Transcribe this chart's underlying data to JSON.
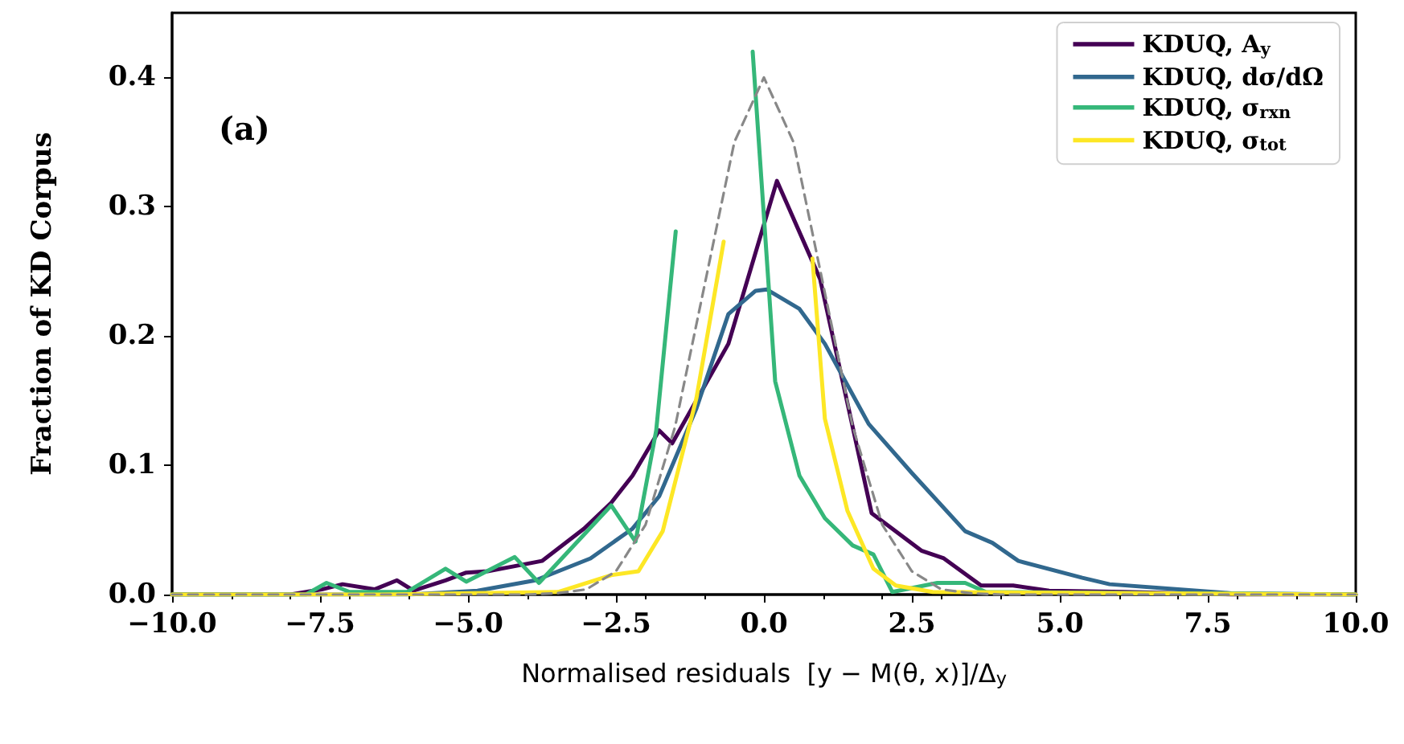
{
  "chart_data": {
    "type": "line",
    "xlabel": "Normalised residuals  [y − M(θ, x)]/Δ$_{y}$",
    "ylabel": "Fraction of KD Corpus",
    "annotations": [
      "(a)"
    ],
    "xlim": [
      -10,
      10
    ],
    "xticks": [
      {
        "value": -10,
        "label": "−10.0"
      },
      {
        "value": -7.5,
        "label": "−7.5"
      },
      {
        "value": -5,
        "label": "−5.0"
      },
      {
        "value": -2.5,
        "label": "−2.5"
      },
      {
        "value": 0,
        "label": "0.0"
      },
      {
        "value": 2.5,
        "label": "2.5"
      },
      {
        "value": 5,
        "label": "5.0"
      },
      {
        "value": 7.5,
        "label": "7.5"
      },
      {
        "value": 10,
        "label": "10.0"
      }
    ],
    "ylim": [
      0,
      0.45
    ],
    "yticks": [
      {
        "value": 0,
        "label": "0.0"
      },
      {
        "value": 0.1,
        "label": "0.1"
      },
      {
        "value": 0.2,
        "label": "0.2"
      },
      {
        "value": 0.3,
        "label": "0.3"
      },
      {
        "value": 0.4,
        "label": "0.4"
      }
    ],
    "grid": false,
    "legend": "top right",
    "marker": "none",
    "line_style": "solid",
    "series": [
      {
        "name": "KDUQ, A$_{y}$",
        "color": "#440154",
        "x": [
          -10,
          -8,
          -7.47,
          -7.12,
          -6.58,
          -6.2,
          -5.92,
          -5.38,
          -5.03,
          -4.67,
          -4.21,
          -3.75,
          -3.04,
          -2.58,
          -2.22,
          -1.77,
          -1.55,
          -0.6,
          0.22,
          0.95,
          1.82,
          2.66,
          3.04,
          3.67,
          4.21,
          4.82,
          6.1,
          7.9,
          10
        ],
        "values": [
          0,
          0,
          0.004,
          0.008,
          0.004,
          0.011,
          0.003,
          0.011,
          0.017,
          0.018,
          0.022,
          0.026,
          0.051,
          0.071,
          0.092,
          0.127,
          0.117,
          0.194,
          0.32,
          0.244,
          0.063,
          0.034,
          0.028,
          0.007,
          0.007,
          0.003,
          0.002,
          0,
          0
        ]
      },
      {
        "name": "KDUQ, dσ/dΩ",
        "color": "#31688e",
        "x": [
          -10,
          -6,
          -4.84,
          -3.86,
          -2.93,
          -2.22,
          -1.77,
          -1.14,
          -0.6,
          -0.14,
          0.05,
          0.6,
          1.03,
          1.77,
          2.5,
          3.4,
          3.86,
          4.3,
          5.38,
          5.84,
          7.0,
          7.9,
          10
        ],
        "values": [
          0,
          0,
          0.003,
          0.011,
          0.028,
          0.051,
          0.076,
          0.144,
          0.217,
          0.235,
          0.236,
          0.221,
          0.194,
          0.132,
          0.094,
          0.049,
          0.04,
          0.026,
          0.013,
          0.008,
          0.004,
          0.001,
          0
        ]
      },
      {
        "name": "KDUQ, σ$_{rxn}$",
        "color": "#35b779",
        "x": [
          -10,
          -7.74,
          -7.39,
          -7.0,
          -6.03,
          -5.38,
          -5.03,
          -4.21,
          -3.8,
          -2.58,
          -2.17,
          -1.82,
          -1.49,
          -1.0,
          -0.8,
          -0.6,
          -0.19,
          0.19,
          0.6,
          1.03,
          1.5,
          1.85,
          2.17,
          2.93,
          3.4,
          3.75,
          10
        ],
        "values": [
          0,
          0,
          0.009,
          0.002,
          0.002,
          0.02,
          0.01,
          0.029,
          0.009,
          0.069,
          0.041,
          0.127,
          0.281,
          null,
          null,
          null,
          0.42,
          0.165,
          0.092,
          0.059,
          0.038,
          0.031,
          0.002,
          0.009,
          0.009,
          0.002,
          0
        ]
      },
      {
        "name": "KDUQ, σ$_{tot}$",
        "color": "#fde725",
        "x": [
          -10,
          -6.5,
          -3.48,
          -2.58,
          -2.12,
          -1.71,
          -1.14,
          -0.68,
          -0.35,
          0.1,
          0.49,
          0.82,
          1.03,
          1.41,
          1.85,
          2.23,
          2.85,
          10
        ],
        "values": [
          0,
          0,
          0.002,
          0.015,
          0.018,
          0.049,
          0.152,
          0.273,
          null,
          null,
          null,
          0.26,
          0.136,
          0.065,
          0.02,
          0.007,
          0.002,
          0
        ]
      },
      {
        "color": "#888888",
        "line_style": "dashed",
        "x": [
          -10,
          -4,
          -3.5,
          -3,
          -2.5,
          -2,
          -1.5,
          -1,
          -0.5,
          0,
          0.5,
          1,
          1.5,
          2,
          2.5,
          3,
          3.5,
          4,
          10
        ],
        "values": [
          0,
          0,
          0.001,
          0.004,
          0.018,
          0.054,
          0.13,
          0.24,
          0.35,
          0.4,
          0.35,
          0.24,
          0.13,
          0.054,
          0.018,
          0.004,
          0.001,
          0,
          0
        ]
      }
    ]
  }
}
